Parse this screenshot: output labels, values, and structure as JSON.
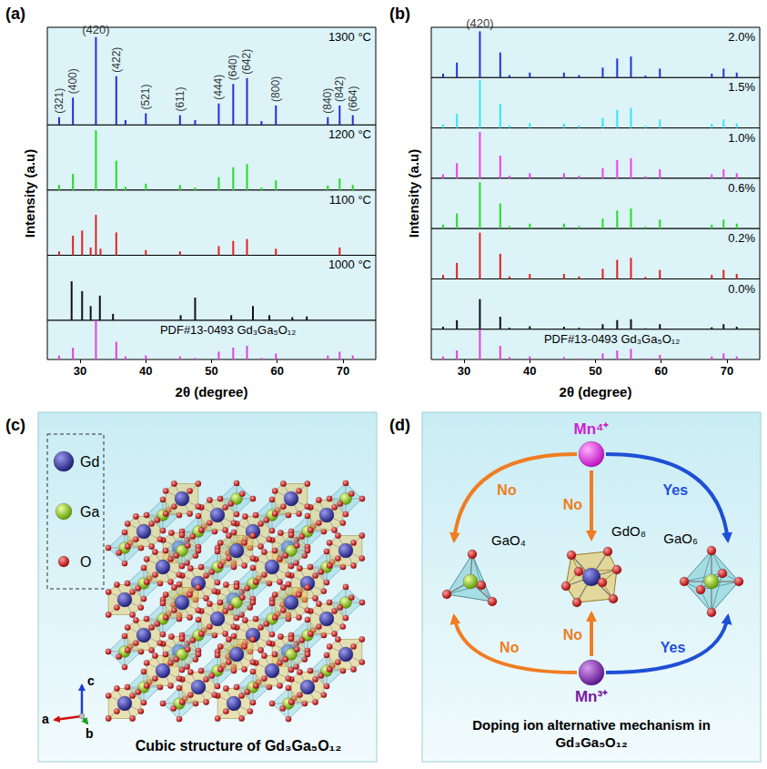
{
  "chart_data": [
    {
      "type": "bar",
      "label": "(a)",
      "x_label": "2θ (degree)",
      "y_label": "Intensity (a.u)",
      "xlim": [
        25,
        75
      ],
      "xticks": [
        30,
        40,
        50,
        60,
        70
      ],
      "ylim": [
        0,
        100
      ],
      "tick_labels": "x",
      "series": [
        {
          "name": "1300 °C",
          "color": "#2b2bd9",
          "x": [
            26.8,
            28.9,
            32.4,
            35.5,
            36.9,
            40.0,
            45.2,
            47.5,
            51.1,
            53.3,
            55.4,
            57.6,
            59.8,
            67.7,
            69.5,
            71.5
          ],
          "values": [
            8,
            28,
            90,
            50,
            5,
            12,
            10,
            5,
            22,
            42,
            48,
            4,
            20,
            8,
            20,
            10
          ]
        },
        {
          "name": "1200 °C",
          "color": "#22dd22",
          "x": [
            26.8,
            28.9,
            32.4,
            35.5,
            36.9,
            40.0,
            45.2,
            47.5,
            51.1,
            53.3,
            55.4,
            57.6,
            59.8,
            67.7,
            69.5,
            71.5
          ],
          "values": [
            8,
            25,
            92,
            45,
            5,
            10,
            8,
            4,
            20,
            35,
            40,
            4,
            15,
            7,
            18,
            8
          ]
        },
        {
          "name": "1100 °C",
          "color": "#e32020",
          "x": [
            26.8,
            28.9,
            30.3,
            31.6,
            32.4,
            33.1,
            35.5,
            40.0,
            45.2,
            51.1,
            53.3,
            55.4,
            59.8,
            69.5
          ],
          "values": [
            6,
            30,
            38,
            12,
            62,
            10,
            35,
            8,
            6,
            14,
            22,
            25,
            10,
            12
          ]
        },
        {
          "name": "1000 °C",
          "color": "#111111",
          "x": [
            28.7,
            30.3,
            31.6,
            33.0,
            35.0,
            45.3,
            47.5,
            53.0,
            56.3,
            58.8,
            62.3,
            64.5
          ],
          "values": [
            60,
            45,
            22,
            38,
            10,
            8,
            35,
            8,
            22,
            8,
            5,
            6
          ]
        },
        {
          "name": "PDF#13-0493 Gd₃Ga₅O₁₂",
          "color": "#e040e0",
          "x": [
            26.8,
            28.9,
            32.4,
            35.5,
            36.9,
            40.0,
            45.2,
            47.5,
            51.1,
            53.3,
            55.4,
            57.6,
            59.8,
            67.7,
            69.5,
            71.5
          ],
          "values": [
            10,
            30,
            100,
            45,
            8,
            10,
            8,
            4,
            20,
            30,
            35,
            4,
            15,
            10,
            20,
            10
          ]
        }
      ],
      "annotations": [
        {
          "text": "(321)",
          "x": 26.8,
          "series": "1300 °C"
        },
        {
          "text": "(400)",
          "x": 28.9,
          "series": "1300 °C"
        },
        {
          "text": "(420)",
          "x": 32.4,
          "series": "1300 °C"
        },
        {
          "text": "(422)",
          "x": 35.5,
          "series": "1300 °C"
        },
        {
          "text": "(521)",
          "x": 40.0,
          "series": "1300 °C"
        },
        {
          "text": "(611)",
          "x": 45.2,
          "series": "1300 °C"
        },
        {
          "text": "(444)",
          "x": 51.1,
          "series": "1300 °C"
        },
        {
          "text": "(640)",
          "x": 53.3,
          "series": "1300 °C"
        },
        {
          "text": "(642)",
          "x": 55.4,
          "series": "1300 °C"
        },
        {
          "text": "(800)",
          "x": 59.8,
          "series": "1300 °C"
        },
        {
          "text": "(840)",
          "x": 67.7,
          "series": "1300 °C"
        },
        {
          "text": "(842)",
          "x": 69.5,
          "series": "1300 °C"
        },
        {
          "text": "(664)",
          "x": 71.5,
          "series": "1300 °C"
        }
      ]
    },
    {
      "type": "bar",
      "label": "(b)",
      "x_label": "2θ (degree)",
      "y_label": "Intensity (a.u)",
      "xlim": [
        25,
        75
      ],
      "xticks": [
        30,
        40,
        50,
        60,
        70
      ],
      "ylim": [
        0,
        100
      ],
      "tick_labels": "x",
      "series": [
        {
          "name": "2.0%",
          "color": "#2233dd",
          "x": [
            26.8,
            28.9,
            32.4,
            35.5,
            36.9,
            40.0,
            45.2,
            47.5,
            51.1,
            53.3,
            55.4,
            57.6,
            59.8,
            67.7,
            69.5,
            71.5
          ],
          "values": [
            8,
            30,
            92,
            50,
            5,
            10,
            10,
            5,
            20,
            38,
            42,
            4,
            18,
            8,
            18,
            10
          ]
        },
        {
          "name": "1.5%",
          "color": "#33e6f5",
          "x": [
            26.8,
            28.9,
            32.4,
            35.5,
            36.9,
            40.0,
            45.2,
            47.5,
            51.1,
            53.3,
            55.4,
            57.6,
            59.8,
            67.7,
            69.5,
            71.5
          ],
          "values": [
            7,
            28,
            95,
            48,
            5,
            10,
            9,
            5,
            20,
            36,
            40,
            4,
            17,
            8,
            17,
            9
          ]
        },
        {
          "name": "1.0%",
          "color": "#f03cf0",
          "x": [
            26.8,
            28.9,
            32.4,
            35.5,
            36.9,
            40.0,
            45.2,
            47.5,
            51.1,
            53.3,
            55.4,
            57.6,
            59.8,
            67.7,
            69.5,
            71.5
          ],
          "values": [
            8,
            30,
            92,
            45,
            5,
            10,
            10,
            5,
            20,
            36,
            40,
            4,
            18,
            8,
            18,
            10
          ]
        },
        {
          "name": "0.6%",
          "color": "#22dd22",
          "x": [
            26.8,
            28.9,
            32.4,
            35.5,
            36.9,
            40.0,
            45.2,
            47.5,
            51.1,
            53.3,
            55.4,
            57.6,
            59.8,
            67.7,
            69.5,
            71.5
          ],
          "values": [
            8,
            30,
            92,
            50,
            5,
            10,
            10,
            5,
            20,
            36,
            40,
            4,
            18,
            8,
            18,
            10
          ]
        },
        {
          "name": "0.2%",
          "color": "#e32020",
          "x": [
            26.8,
            28.9,
            32.4,
            35.5,
            36.9,
            40.0,
            45.2,
            47.5,
            51.1,
            53.3,
            55.4,
            57.6,
            59.8,
            67.7,
            69.5,
            71.5
          ],
          "values": [
            8,
            32,
            92,
            50,
            5,
            10,
            10,
            5,
            20,
            38,
            42,
            4,
            18,
            8,
            18,
            10
          ]
        },
        {
          "name": "0.0%",
          "color": "#111111",
          "x": [
            26.8,
            28.9,
            32.4,
            35.5,
            36.9,
            40.0,
            45.2,
            47.5,
            51.1,
            53.3,
            55.4,
            57.6,
            59.8,
            67.7,
            69.5,
            71.5
          ],
          "values": [
            5,
            18,
            60,
            25,
            3,
            6,
            5,
            3,
            10,
            18,
            20,
            2,
            10,
            4,
            10,
            5
          ]
        },
        {
          "name": "PDF#13-0493 Gd₃Ga₅O₁₂",
          "color": "#e040e0",
          "x": [
            26.8,
            28.9,
            32.4,
            35.5,
            36.9,
            40.0,
            45.2,
            47.5,
            51.1,
            53.3,
            55.4,
            57.6,
            59.8,
            67.7,
            69.5,
            71.5
          ],
          "values": [
            10,
            30,
            100,
            45,
            8,
            10,
            8,
            4,
            20,
            30,
            35,
            4,
            15,
            10,
            20,
            10
          ]
        }
      ],
      "annotations": [
        {
          "text": "(420)",
          "x": 32.4,
          "series": "2.0%"
        }
      ]
    }
  ],
  "panels": [
    {
      "label": "(c)",
      "legend": [
        "Gd",
        "Ga",
        "O"
      ],
      "axes": [
        "a",
        "b",
        "c"
      ],
      "caption": "Cubic structure of Gd₃Ga₅O₁₂"
    },
    {
      "label": "(d)",
      "nodes": [
        "Mn⁴⁺",
        "GaO₄",
        "GdO₈",
        "GaO₆",
        "Mn³⁺"
      ],
      "edges": [
        {
          "from": "Mn⁴⁺",
          "to": "GaO₄",
          "label": "No",
          "color": "#f07d22"
        },
        {
          "from": "Mn⁴⁺",
          "to": "GdO₈",
          "label": "No",
          "color": "#f07d22"
        },
        {
          "from": "Mn⁴⁺",
          "to": "GaO₆",
          "label": "Yes",
          "color": "#1f4fd6"
        },
        {
          "from": "Mn³⁺",
          "to": "GaO₄",
          "label": "No",
          "color": "#f07d22"
        },
        {
          "from": "Mn³⁺",
          "to": "GdO₈",
          "label": "No",
          "color": "#f07d22"
        },
        {
          "from": "Mn³⁺",
          "to": "GaO₆",
          "label": "Yes",
          "color": "#1f4fd6"
        }
      ],
      "caption": "Doping ion alternative mechanism in Gd₃Ga₅O₁₂"
    }
  ]
}
